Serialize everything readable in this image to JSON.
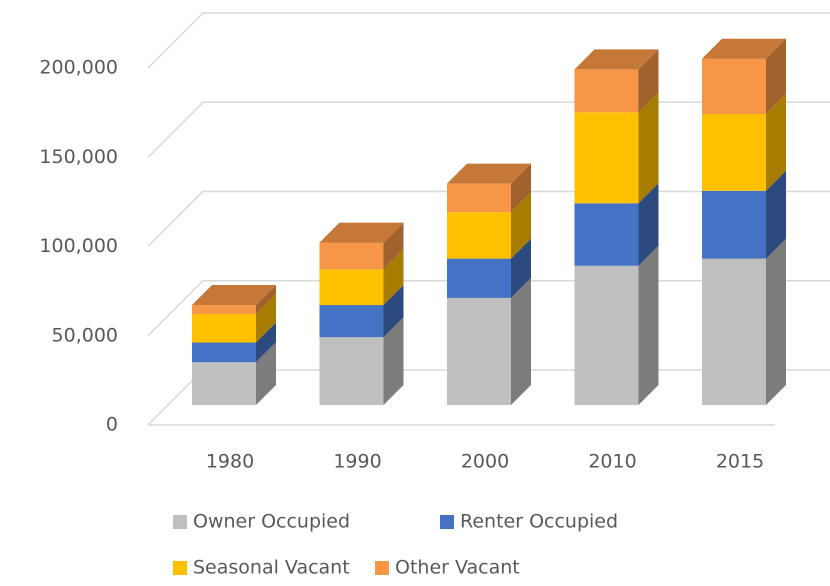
{
  "chart_data": {
    "type": "bar3d_stacked",
    "categories": [
      "1980",
      "1990",
      "2000",
      "2010",
      "2015"
    ],
    "series": [
      {
        "name": "Owner Occupied",
        "color": "#bfbfbf",
        "values": [
          24000,
          38000,
          60000,
          78000,
          82000
        ]
      },
      {
        "name": "Renter Occupied",
        "color": "#4472c4",
        "values": [
          11000,
          18000,
          22000,
          35000,
          38000
        ]
      },
      {
        "name": "Seasonal Vacant",
        "color": "#ffc000",
        "values": [
          16000,
          20000,
          26000,
          51000,
          43000
        ]
      },
      {
        "name": "Other Vacant",
        "color": "#f79646",
        "values": [
          5000,
          15000,
          16000,
          24000,
          31000
        ]
      }
    ],
    "ylim": [
      0,
      200000
    ],
    "yticks": [
      {
        "value": 0,
        "label": "0"
      },
      {
        "value": 50000,
        "label": "50,000"
      },
      {
        "value": 100000,
        "label": "100,000"
      },
      {
        "value": 150000,
        "label": "150,000"
      },
      {
        "value": 200000,
        "label": "200,000"
      }
    ],
    "grid": true,
    "legend": "bottom"
  }
}
